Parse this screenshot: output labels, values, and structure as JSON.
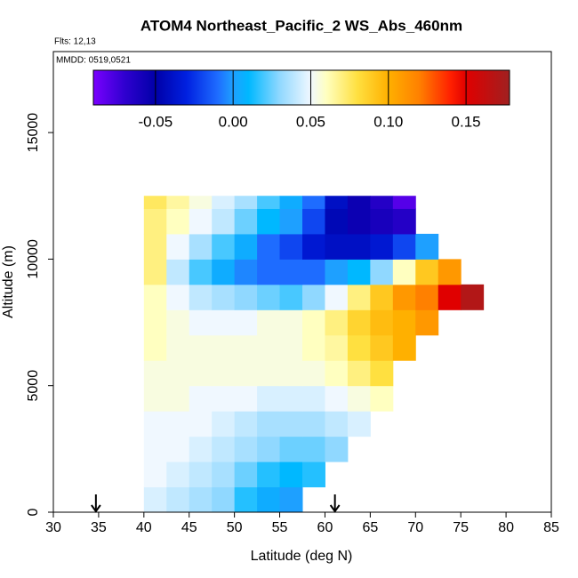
{
  "chart_data": {
    "type": "heatmap",
    "title": "ATOM4 Northeast_Pacific_2 WS_Abs_460nm",
    "subtitle": "Flts: 12,13",
    "annotation": "MMDD: 0519,0521",
    "xlabel": "Latitude (deg N)",
    "ylabel": "Altitude (m)",
    "xlim": [
      30,
      85
    ],
    "ylim": [
      0,
      18200
    ],
    "xticks": [
      30,
      35,
      40,
      45,
      50,
      55,
      60,
      65,
      70,
      75,
      80,
      85
    ],
    "yticks": [
      0,
      5000,
      10000,
      15000
    ],
    "x_edges": [
      40,
      42.5,
      45,
      47.5,
      50,
      52.5,
      55,
      57.5,
      60,
      62.5,
      65,
      67.5,
      70,
      72.5,
      75,
      77.5
    ],
    "y_edges": [
      0,
      1000,
      2000,
      3000,
      4000,
      5000,
      6000,
      7000,
      8000,
      9000,
      10000,
      11000,
      12000,
      12500
    ],
    "z": [
      [
        0.045,
        0.04,
        0.035,
        0.03,
        0.015,
        0.005,
        0.0,
        null,
        null,
        null,
        null,
        null,
        null,
        null,
        null
      ],
      [
        0.05,
        0.045,
        0.04,
        0.035,
        0.025,
        0.015,
        0.01,
        0.015,
        null,
        null,
        null,
        null,
        null,
        null,
        null
      ],
      [
        0.05,
        0.05,
        0.045,
        0.04,
        0.035,
        0.03,
        0.025,
        0.025,
        0.03,
        null,
        null,
        null,
        null,
        null,
        null
      ],
      [
        0.05,
        0.05,
        0.05,
        0.045,
        0.04,
        0.035,
        0.035,
        0.035,
        0.04,
        0.045,
        null,
        null,
        null,
        null,
        null
      ],
      [
        0.055,
        0.055,
        0.05,
        0.05,
        0.05,
        0.045,
        0.045,
        0.045,
        0.05,
        0.055,
        0.06,
        null,
        null,
        null,
        null
      ],
      [
        0.055,
        0.055,
        0.055,
        0.055,
        0.055,
        0.055,
        0.055,
        0.055,
        0.06,
        0.07,
        0.08,
        null,
        null,
        null,
        null
      ],
      [
        0.06,
        0.055,
        0.055,
        0.055,
        0.055,
        0.055,
        0.055,
        0.06,
        0.065,
        0.08,
        0.09,
        0.1,
        null,
        null,
        null
      ],
      [
        0.06,
        0.055,
        0.05,
        0.05,
        0.05,
        0.055,
        0.055,
        0.06,
        0.07,
        0.085,
        0.095,
        0.1,
        0.11,
        null,
        null
      ],
      [
        0.06,
        0.05,
        0.04,
        0.035,
        0.03,
        0.025,
        0.02,
        0.03,
        0.05,
        0.07,
        0.09,
        0.11,
        0.12,
        0.15,
        0.17
      ],
      [
        0.07,
        0.04,
        0.02,
        0.005,
        -0.005,
        -0.01,
        -0.01,
        -0.01,
        0.0,
        0.01,
        0.03,
        0.06,
        0.09,
        0.11,
        null
      ],
      [
        0.07,
        0.05,
        0.035,
        0.02,
        0.005,
        -0.01,
        -0.02,
        -0.035,
        -0.04,
        -0.04,
        -0.035,
        -0.02,
        0.0,
        null,
        null
      ],
      [
        0.07,
        0.06,
        0.05,
        0.04,
        0.025,
        0.01,
        0.0,
        -0.02,
        -0.045,
        -0.055,
        -0.06,
        -0.065,
        null,
        null,
        null
      ],
      [
        0.075,
        0.065,
        0.055,
        0.045,
        0.035,
        0.02,
        0.005,
        -0.01,
        -0.04,
        -0.055,
        -0.065,
        -0.08,
        null,
        null,
        null
      ]
    ],
    "colorbar_lim": [
      -0.09,
      0.178
    ],
    "colorbar_ticks": [
      -0.05,
      {
        "value": 0,
        "label": "0.00"
      },
      0.05,
      {
        "value": 0.1,
        "label": "0.10"
      },
      0.15
    ],
    "colormap": [
      {
        "value": -0.09,
        "color": "#7a00ff"
      },
      {
        "value": -0.07,
        "color": "#3000d0"
      },
      {
        "value": -0.05,
        "color": "#0000a8"
      },
      {
        "value": -0.03,
        "color": "#0020e0"
      },
      {
        "value": -0.01,
        "color": "#1e6cff"
      },
      {
        "value": 0.0,
        "color": "#1ea0ff"
      },
      {
        "value": 0.01,
        "color": "#00b8ff"
      },
      {
        "value": 0.03,
        "color": "#90d8ff"
      },
      {
        "value": 0.05,
        "color": "#f0f8ff"
      },
      {
        "value": 0.06,
        "color": "#ffffc0"
      },
      {
        "value": 0.08,
        "color": "#ffe040"
      },
      {
        "value": 0.1,
        "color": "#ffb000"
      },
      {
        "value": 0.12,
        "color": "#ff8000"
      },
      {
        "value": 0.14,
        "color": "#ff2000"
      },
      {
        "value": 0.15,
        "color": "#e00000"
      },
      {
        "value": 0.178,
        "color": "#a02020"
      }
    ],
    "arrows": [
      34.7,
      61.1
    ]
  }
}
